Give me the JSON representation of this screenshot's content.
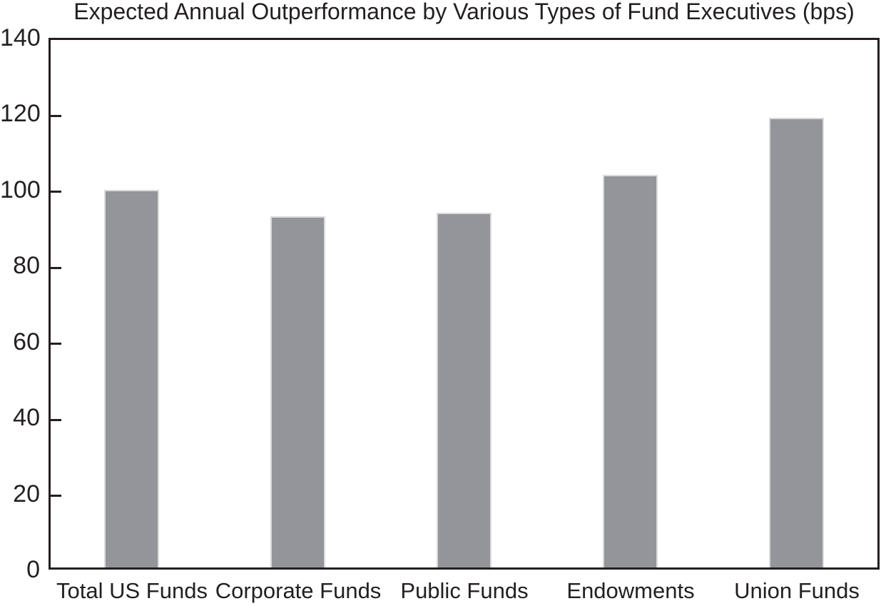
{
  "chart_data": {
    "type": "bar",
    "title": "Expected Annual Outperformance by Various Types of Fund Executives (bps)",
    "categories": [
      "Total US Funds",
      "Corporate Funds",
      "Public Funds",
      "Endowments",
      "Union Funds"
    ],
    "values": [
      100,
      93,
      94,
      104,
      119
    ],
    "xlabel": "",
    "ylabel": "",
    "ylim": [
      0,
      140
    ],
    "yticks": [
      0,
      20,
      40,
      60,
      80,
      100,
      120,
      140
    ],
    "grid": false,
    "legend": "none",
    "colors": {
      "bar_fill": "#94959a",
      "bar_edge": "#d9dadc",
      "axis": "#231f20",
      "text": "#231f20",
      "background": "#ffffff"
    }
  }
}
